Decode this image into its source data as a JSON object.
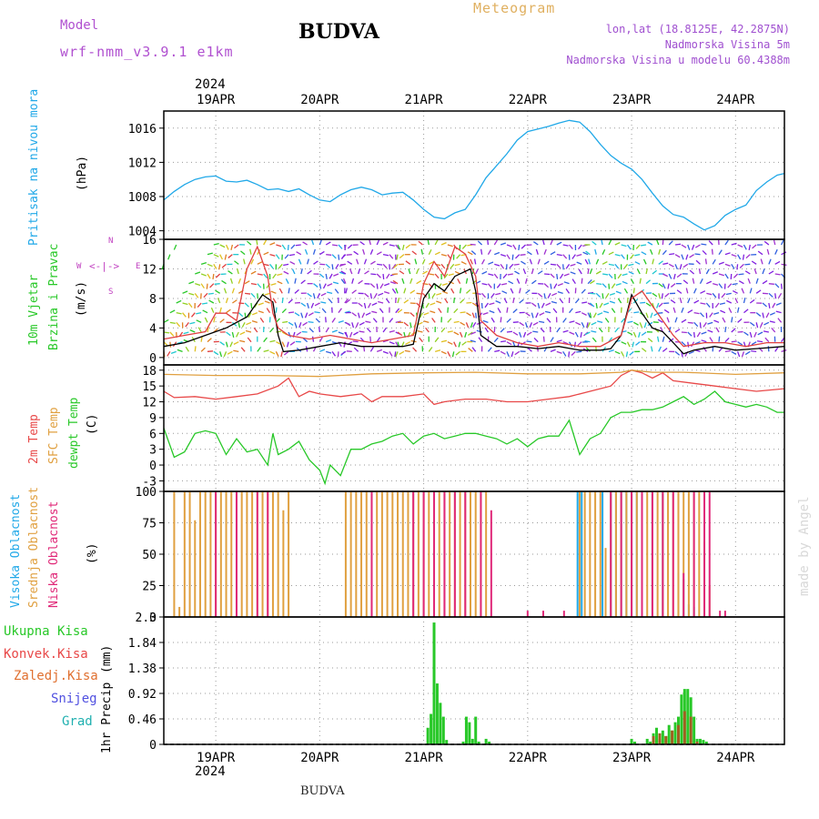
{
  "header": {
    "model_label": "Model",
    "model_name": "wrf-nmm_v3.9.1 e1km",
    "station": "BUDVA",
    "meteogram": "Meteogram",
    "lonlat": "lon,lat (18.8125E, 42.2875N)",
    "elevation": "Nadmorska Visina 5m",
    "model_elevation": "Nadmorska Visina u modelu 60.4388m",
    "footer_station": "BUDVA",
    "watermark": "made by Angel",
    "year": "2024",
    "colors": {
      "model": "#b050d0",
      "title": "#000000",
      "meteogram": "#e0b060",
      "info": "#a050d0"
    }
  },
  "x_axis": {
    "day_labels": [
      "19APR",
      "20APR",
      "21APR",
      "22APR",
      "23APR",
      "24APR"
    ],
    "day_positions": [
      0,
      1,
      2,
      3,
      4,
      5
    ],
    "x_range": [
      -0.5,
      5.47
    ]
  },
  "chart_data": [
    {
      "id": "pressure",
      "type": "line",
      "ylabel_1": "Pritisak na nivou mora",
      "ylabel_2": "(hPa)",
      "ylim": [
        1003,
        1018
      ],
      "yticks": [
        1004,
        1008,
        1012,
        1016
      ],
      "x_unit": "days from 19APR",
      "series": [
        {
          "color": "#20a8e8",
          "x": [
            -0.5,
            -0.4,
            -0.3,
            -0.2,
            -0.1,
            0,
            0.1,
            0.2,
            0.3,
            0.4,
            0.5,
            0.6,
            0.7,
            0.8,
            0.9,
            1,
            1.1,
            1.2,
            1.3,
            1.4,
            1.5,
            1.6,
            1.7,
            1.8,
            1.9,
            2,
            2.1,
            2.2,
            2.3,
            2.4,
            2.5,
            2.6,
            2.7,
            2.8,
            2.9,
            3,
            3.1,
            3.2,
            3.3,
            3.4,
            3.5,
            3.6,
            3.7,
            3.8,
            3.9,
            4,
            4.1,
            4.2,
            4.3,
            4.4,
            4.5,
            4.6,
            4.7,
            4.8,
            4.9,
            5,
            5.1,
            5.2,
            5.3,
            5.4,
            5.47
          ],
          "y": [
            1007.6,
            1008.6,
            1009.4,
            1010.0,
            1010.3,
            1010.4,
            1009.8,
            1009.7,
            1009.9,
            1009.4,
            1008.8,
            1008.9,
            1008.6,
            1008.9,
            1008.2,
            1007.6,
            1007.4,
            1008.2,
            1008.8,
            1009.1,
            1008.8,
            1008.2,
            1008.4,
            1008.5,
            1007.6,
            1006.5,
            1005.6,
            1005.4,
            1006.1,
            1006.5,
            1008.2,
            1010.2,
            1011.6,
            1013.0,
            1014.6,
            1015.6,
            1015.9,
            1016.2,
            1016.6,
            1016.9,
            1016.7,
            1015.6,
            1014.1,
            1012.8,
            1011.9,
            1011.2,
            1010.0,
            1008.4,
            1006.9,
            1005.9,
            1005.6,
            1004.8,
            1004.1,
            1004.6,
            1005.8,
            1006.5,
            1007.0,
            1008.7,
            1009.7,
            1010.5,
            1010.7
          ]
        }
      ]
    },
    {
      "id": "wind",
      "type": "line",
      "ylabel_1": "10m Vjetar",
      "ylabel_2": "Brzina i Pravac",
      "ylabel_3": "(m/s)",
      "compass": {
        "n": "N",
        "s": "S",
        "w": "W",
        "e": "E"
      },
      "ylim": [
        -1,
        16
      ],
      "yticks": [
        0,
        4,
        8,
        12,
        16
      ],
      "series": [
        {
          "name": "speed",
          "color": "#000000",
          "x": [
            -0.5,
            -0.3,
            -0.1,
            0.1,
            0.3,
            0.45,
            0.55,
            0.6,
            0.65,
            0.8,
            1.0,
            1.2,
            1.4,
            1.6,
            1.8,
            1.9,
            2.0,
            2.1,
            2.2,
            2.3,
            2.45,
            2.5,
            2.55,
            2.7,
            2.9,
            3.1,
            3.3,
            3.5,
            3.7,
            3.8,
            3.9,
            4.0,
            4.1,
            4.2,
            4.3,
            4.4,
            4.5,
            4.6,
            4.8,
            5.0,
            5.2,
            5.47
          ],
          "y": [
            1.5,
            2,
            3,
            4,
            5.5,
            8.5,
            7.5,
            3,
            0.8,
            1.0,
            1.5,
            2.0,
            1.5,
            1.5,
            1.5,
            1.8,
            8,
            10,
            9,
            11,
            12,
            9,
            3,
            1.5,
            1.5,
            1.2,
            1.5,
            1.0,
            1.0,
            1.2,
            3,
            8.5,
            6,
            4,
            3.5,
            2,
            0.5,
            1,
            1.5,
            1,
            1.2,
            1.5
          ]
        },
        {
          "name": "gust",
          "color": "#e04040",
          "x": [
            -0.5,
            -0.3,
            -0.1,
            0,
            0.1,
            0.2,
            0.3,
            0.4,
            0.5,
            0.55,
            0.6,
            0.7,
            0.9,
            1.1,
            1.3,
            1.5,
            1.7,
            1.9,
            2.0,
            2.1,
            2.2,
            2.3,
            2.4,
            2.5,
            2.55,
            2.7,
            2.9,
            3.1,
            3.3,
            3.5,
            3.7,
            3.9,
            4.0,
            4.1,
            4.2,
            4.3,
            4.4,
            4.5,
            4.7,
            4.9,
            5.1,
            5.3,
            5.47
          ],
          "y": [
            2.5,
            3,
            3.5,
            6,
            6,
            5,
            12,
            15,
            11,
            6,
            4,
            3,
            2.5,
            3,
            2.5,
            2,
            2.5,
            3,
            10,
            13,
            11,
            15,
            14,
            11,
            5,
            3,
            2,
            1.5,
            2,
            1.5,
            1.5,
            3,
            8,
            9,
            7,
            5,
            3,
            1.5,
            2,
            2,
            1.5,
            2,
            2
          ]
        }
      ]
    },
    {
      "id": "temperature",
      "type": "line",
      "ylabel_1": "2m Temp",
      "ylabel_2": "SFC Temp",
      "ylabel_3": "dewpt Temp",
      "ylabel_4": "(C)",
      "ylim": [
        -5,
        19
      ],
      "yticks": [
        -3,
        0,
        3,
        6,
        9,
        12,
        15,
        18
      ],
      "series": [
        {
          "name": "2m Temp",
          "color": "#e84848",
          "x": [
            -0.5,
            -0.4,
            -0.2,
            0,
            0.2,
            0.4,
            0.6,
            0.7,
            0.8,
            0.9,
            1.0,
            1.2,
            1.4,
            1.5,
            1.6,
            1.8,
            2.0,
            2.1,
            2.2,
            2.4,
            2.6,
            2.8,
            3.0,
            3.2,
            3.4,
            3.6,
            3.8,
            3.9,
            4.0,
            4.1,
            4.2,
            4.3,
            4.4,
            4.6,
            4.8,
            5.0,
            5.2,
            5.47
          ],
          "y": [
            14,
            12.8,
            13,
            12.5,
            13,
            13.5,
            15,
            16.5,
            13,
            14,
            13.5,
            13,
            13.5,
            12,
            13,
            13,
            13.5,
            11.5,
            12,
            12.5,
            12.5,
            12,
            12,
            12.5,
            13,
            14,
            15,
            17,
            18,
            17.5,
            16.5,
            17.5,
            16,
            15.5,
            15,
            14.5,
            14,
            14.5
          ]
        },
        {
          "name": "SFC Temp",
          "color": "#e0a040",
          "x": [
            -0.5,
            0,
            0.5,
            1.0,
            1.5,
            2.0,
            2.5,
            3.0,
            3.5,
            3.9,
            4.0,
            4.2,
            4.5,
            5.0,
            5.47
          ],
          "y": [
            17.2,
            17,
            17,
            16.8,
            17.3,
            17.5,
            17.6,
            17.3,
            17.3,
            17.6,
            18.0,
            17.6,
            17.6,
            17.2,
            17.5
          ]
        },
        {
          "name": "dewpt Temp",
          "color": "#28c828",
          "x": [
            -0.5,
            -0.4,
            -0.3,
            -0.2,
            -0.1,
            0,
            0.1,
            0.2,
            0.3,
            0.4,
            0.5,
            0.55,
            0.6,
            0.7,
            0.8,
            0.9,
            1.0,
            1.05,
            1.1,
            1.2,
            1.3,
            1.4,
            1.5,
            1.6,
            1.7,
            1.8,
            1.9,
            2.0,
            2.1,
            2.2,
            2.3,
            2.4,
            2.5,
            2.6,
            2.7,
            2.8,
            2.9,
            3.0,
            3.1,
            3.2,
            3.3,
            3.4,
            3.5,
            3.6,
            3.7,
            3.8,
            3.9,
            4.0,
            4.1,
            4.2,
            4.3,
            4.4,
            4.5,
            4.6,
            4.7,
            4.8,
            4.9,
            5.0,
            5.1,
            5.2,
            5.3,
            5.4,
            5.47
          ],
          "y": [
            7,
            1.5,
            2.5,
            6,
            6.5,
            6,
            2,
            5,
            2.5,
            3,
            0,
            6,
            2,
            3,
            4.5,
            1,
            -1,
            -3.5,
            0,
            -2,
            3,
            3,
            4,
            4.5,
            5.5,
            6,
            4,
            5.5,
            6,
            5,
            5.5,
            6,
            6,
            5.5,
            5,
            4,
            5,
            3.5,
            5,
            5.5,
            5.5,
            8.5,
            2,
            5,
            6,
            9,
            10,
            10,
            10.5,
            10.5,
            11,
            12,
            13,
            11.5,
            12.5,
            14,
            12,
            11.5,
            11,
            11.5,
            11,
            10,
            10
          ]
        }
      ]
    },
    {
      "id": "clouds",
      "type": "bar",
      "ylabel_1": "Visoka Oblacnost",
      "ylabel_2": "Srednja Oblacnost",
      "ylabel_3": "Niska Oblacnost",
      "ylabel_4": "(%)",
      "ylim": [
        0,
        100
      ],
      "yticks": [
        0,
        25,
        50,
        75,
        100
      ],
      "series": [
        {
          "name": "Visoka Oblacnost",
          "color": "#20a8e8",
          "x": [
            3.48,
            3.5,
            3.52,
            3.72,
            3.8,
            3.85,
            3.9,
            3.95,
            4.0,
            4.05,
            4.1,
            4.2,
            4.3,
            4.45,
            4.5,
            4.55,
            4.6
          ],
          "y": [
            100,
            100,
            100,
            100,
            100,
            100,
            100,
            100,
            100,
            100,
            100,
            100,
            100,
            35,
            30,
            10,
            8
          ]
        },
        {
          "name": "Srednja Oblacnost",
          "color": "#e0a040",
          "x": [
            -0.4,
            -0.35,
            -0.3,
            -0.25,
            -0.2,
            -0.15,
            -0.1,
            -0.05,
            0,
            0.05,
            0.1,
            0.15,
            0.2,
            0.25,
            0.3,
            0.35,
            0.4,
            0.45,
            0.5,
            0.55,
            0.6,
            0.65,
            0.7,
            1.25,
            1.3,
            1.35,
            1.4,
            1.45,
            1.5,
            1.55,
            1.6,
            1.65,
            1.7,
            1.75,
            1.8,
            1.85,
            1.9,
            1.95,
            2.0,
            2.05,
            2.1,
            2.15,
            2.2,
            2.25,
            2.3,
            2.35,
            2.4,
            2.45,
            2.5,
            2.55,
            2.6,
            3.5,
            3.55,
            3.6,
            3.65,
            3.7,
            3.75,
            3.8,
            3.85,
            3.9,
            3.95,
            4.0,
            4.05,
            4.1,
            4.15,
            4.2,
            4.25,
            4.3,
            4.35,
            4.4,
            4.45,
            4.5,
            4.55,
            4.6,
            4.65,
            4.7,
            4.75
          ],
          "y": [
            100,
            8,
            100,
            100,
            77,
            100,
            100,
            100,
            100,
            100,
            100,
            100,
            100,
            100,
            100,
            100,
            100,
            100,
            100,
            100,
            100,
            85,
            100,
            100,
            100,
            100,
            100,
            100,
            100,
            100,
            100,
            100,
            100,
            100,
            100,
            100,
            100,
            100,
            100,
            100,
            100,
            100,
            100,
            100,
            100,
            100,
            100,
            100,
            100,
            100,
            100,
            100,
            100,
            100,
            100,
            100,
            55,
            100,
            100,
            100,
            100,
            100,
            100,
            100,
            100,
            100,
            100,
            100,
            100,
            100,
            100,
            100,
            100,
            100,
            100,
            60,
            25
          ]
        },
        {
          "name": "Niska Oblacnost",
          "color": "#e02878",
          "x": [
            0,
            0.2,
            0.4,
            0.5,
            1.5,
            1.9,
            2.0,
            2.1,
            2.2,
            2.3,
            2.4,
            2.55,
            2.65,
            3.0,
            3.15,
            3.35,
            3.8,
            3.9,
            4.0,
            4.1,
            4.2,
            4.3,
            4.4,
            4.5,
            4.6,
            4.7,
            4.75,
            4.85,
            4.9
          ],
          "y": [
            100,
            100,
            100,
            100,
            100,
            100,
            100,
            100,
            100,
            100,
            100,
            100,
            85,
            5,
            5,
            5,
            100,
            100,
            100,
            100,
            100,
            100,
            100,
            35,
            100,
            100,
            100,
            5,
            5
          ]
        }
      ]
    },
    {
      "id": "precip",
      "type": "bar",
      "labels": [
        "Ukupna Kisa",
        "Konvek.Kisa",
        "Zaledj.Kisa",
        "Snijeg",
        "Grad"
      ],
      "label_colors": [
        "#28c828",
        "#e84848",
        "#e07030",
        "#5050e0",
        "#20b0b0"
      ],
      "ylabel_1": "1hr Precip",
      "ylabel_2": "(mm)",
      "ylim": [
        0,
        2.3
      ],
      "yticks": [
        0,
        0.46,
        0.92,
        1.38,
        1.84,
        2.3
      ],
      "series": [
        {
          "name": "Ukupna Kisa",
          "color": "#28c828",
          "x": [
            2.04,
            2.07,
            2.1,
            2.13,
            2.16,
            2.19,
            2.22,
            2.38,
            2.41,
            2.44,
            2.47,
            2.5,
            2.53,
            2.6,
            2.63,
            4.0,
            4.03,
            4.15,
            4.18,
            4.21,
            4.24,
            4.27,
            4.3,
            4.33,
            4.36,
            4.39,
            4.42,
            4.45,
            4.48,
            4.51,
            4.54,
            4.57,
            4.6,
            4.63,
            4.66,
            4.69,
            4.72
          ],
          "y": [
            0.3,
            0.55,
            2.2,
            1.1,
            0.75,
            0.5,
            0.08,
            0.05,
            0.5,
            0.4,
            0.1,
            0.5,
            0.05,
            0.1,
            0.05,
            0.1,
            0.05,
            0.1,
            0.05,
            0.2,
            0.3,
            0.1,
            0.25,
            0.15,
            0.35,
            0.25,
            0.4,
            0.5,
            0.9,
            1.0,
            1.0,
            0.85,
            0.5,
            0.1,
            0.1,
            0.08,
            0.05
          ]
        },
        {
          "name": "Konvek.Kisa",
          "color": "#a06020",
          "x": [
            4.21,
            4.27,
            4.33,
            4.39,
            4.45,
            4.51,
            4.57,
            4.63
          ],
          "y": [
            0.15,
            0.2,
            0.15,
            0.25,
            0.35,
            0.6,
            0.5,
            0.05
          ]
        }
      ]
    }
  ]
}
